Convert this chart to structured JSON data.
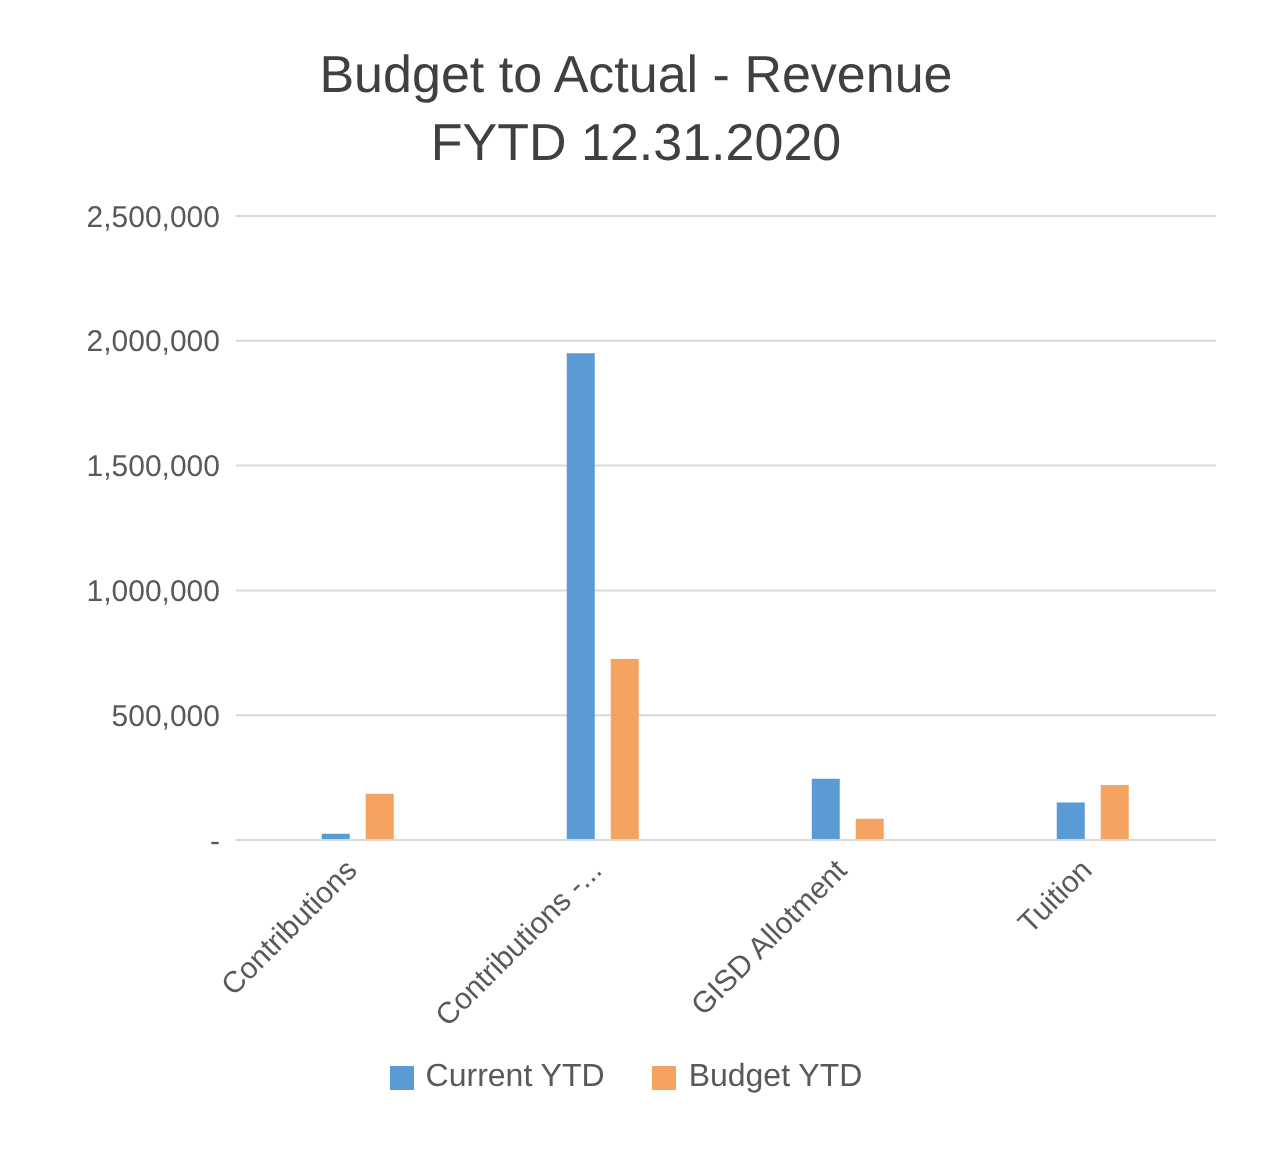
{
  "chart_data": {
    "type": "bar",
    "title": "Budget to Actual - Revenue",
    "subtitle": "FYTD 12.31.2020",
    "categories": [
      "Contributions",
      "Contributions -...",
      "GISD Allotment",
      "Tuition"
    ],
    "series": [
      {
        "name": "Current YTD",
        "color": "#5b9bd5",
        "values": [
          25000,
          1950000,
          245000,
          150000
        ]
      },
      {
        "name": "Budget YTD",
        "color": "#f4a460",
        "values": [
          185000,
          725000,
          85000,
          220000
        ]
      }
    ],
    "ylim": [
      0,
      2500000
    ],
    "yticks": [
      {
        "value": 0,
        "label": "-"
      },
      {
        "value": 500000,
        "label": "500,000"
      },
      {
        "value": 1000000,
        "label": "1,000,000"
      },
      {
        "value": 1500000,
        "label": "1,500,000"
      },
      {
        "value": 2000000,
        "label": "2,000,000"
      },
      {
        "value": 2500000,
        "label": "2,500,000"
      }
    ],
    "grid": "y",
    "legend": "bottom"
  }
}
